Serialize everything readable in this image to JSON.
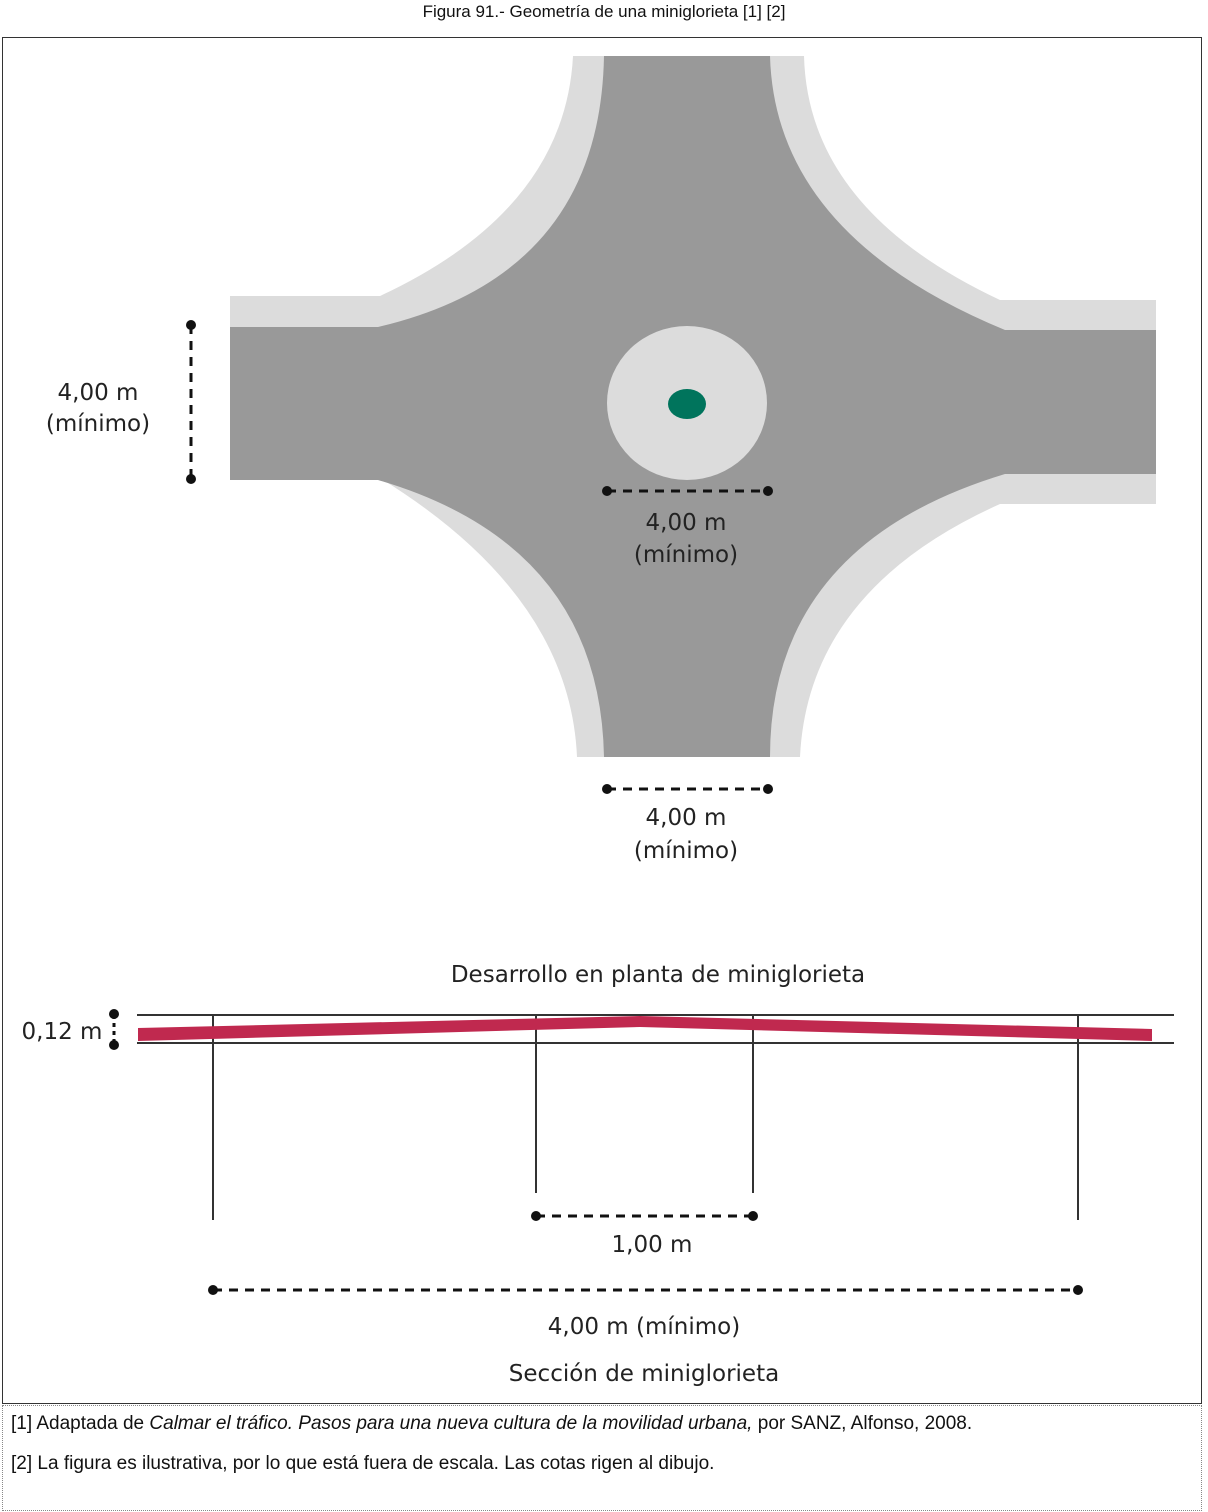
{
  "caption": "Figura 91.- Geometría de una miniglorieta [1] [2]",
  "plan": {
    "dim_left": {
      "value": "4,00 m",
      "note": "(mínimo)"
    },
    "dim_center": {
      "value": "4,00 m",
      "note": "(mínimo)"
    },
    "dim_bottom": {
      "value": "4,00 m",
      "note": "(mínimo)"
    },
    "title": "Desarrollo en planta de miniglorieta"
  },
  "section": {
    "dim_height": "0,12 m",
    "dim_inner": "1,00 m",
    "dim_total": "4,00 m (mínimo)",
    "title": "Sección de miniglorieta"
  },
  "notes": {
    "n1_prefix": "[1] Adaptada de ",
    "n1_title": "Calmar el tráfico. Pasos para una nueva cultura de la movilidad urbana,",
    "n1_suffix": " por SANZ, Alfonso, 2008.",
    "n2": "[2] La figura es ilustrativa, por lo que está fuera de escala. Las cotas rigen al dibujo."
  },
  "colors": {
    "road": "#999999",
    "sidewalk": "#dcdcdc",
    "center_dot": "#00745c",
    "section_band": "#c0294f"
  }
}
